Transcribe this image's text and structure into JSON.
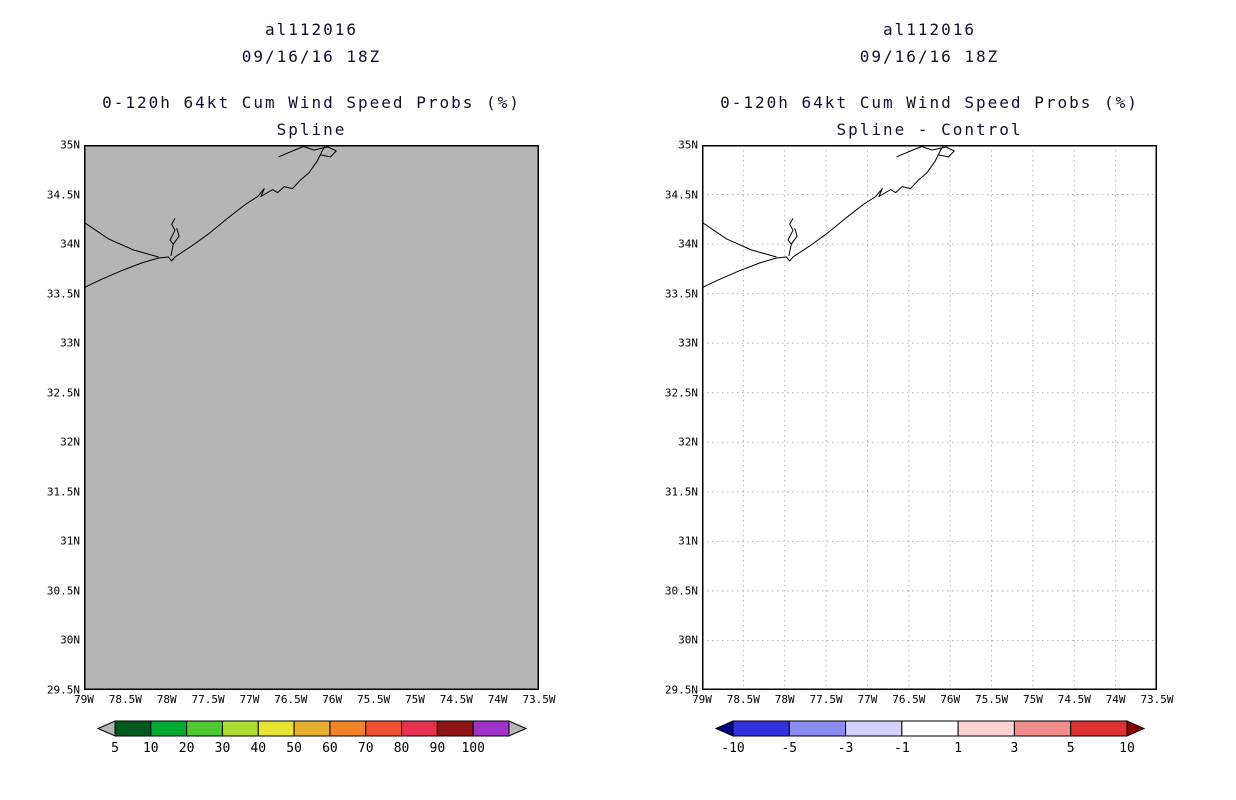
{
  "axes": {
    "lat": [
      "35N",
      "34.5N",
      "34N",
      "33.5N",
      "33N",
      "32.5N",
      "32N",
      "31.5N",
      "31N",
      "30.5N",
      "30N",
      "29.5N"
    ],
    "lon": [
      "79W",
      "78.5W",
      "78W",
      "77.5W",
      "77W",
      "76.5W",
      "76W",
      "75.5W",
      "75W",
      "74.5W",
      "74W",
      "73.5W"
    ]
  },
  "panels": [
    {
      "title_line1": "al112016",
      "title_line2": "09/16/16 18Z",
      "subtitle_line1": "0-120h 64kt Cum Wind Speed Probs (%)",
      "subtitle_line2": "Spline",
      "map": {
        "fill": "#b5b5b5",
        "coastline_color": "#000000"
      },
      "colorbar": {
        "labels": [
          "5",
          "10",
          "20",
          "30",
          "40",
          "50",
          "60",
          "70",
          "80",
          "90",
          "100"
        ],
        "segments": [
          "#00591f",
          "#00aa32",
          "#50c832",
          "#aadc32",
          "#e6e632",
          "#e6af2d",
          "#f08228",
          "#f05032",
          "#e63250",
          "#8c1414",
          "#a032c8"
        ],
        "left_arrow": "#b5b5b5",
        "right_arrow": "#b5b5b5"
      }
    },
    {
      "title_line1": "al112016",
      "title_line2": "09/16/16 18Z",
      "subtitle_line1": "0-120h 64kt Cum Wind Speed Probs (%)",
      "subtitle_line2": "Spline - Control",
      "map": {
        "fill": "#ffffff",
        "coastline_color": "#000000"
      },
      "colorbar": {
        "labels": [
          "-10",
          "-5",
          "-3",
          "-1",
          "1",
          "3",
          "5",
          "10"
        ],
        "segments": [
          "#3232dc",
          "#8c8cf0",
          "#d2d2fa",
          "#ffffff",
          "#fad2d2",
          "#f08c8c",
          "#dc3232"
        ],
        "left_arrow": "#00008b",
        "right_arrow": "#8b0000"
      }
    }
  ]
}
